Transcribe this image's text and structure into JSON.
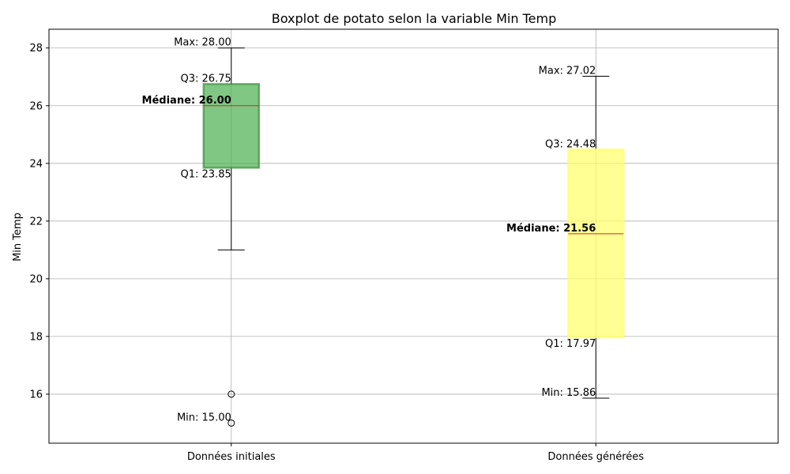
{
  "chart_data": {
    "type": "boxplot",
    "title": "Boxplot de potato selon la variable Min Temp",
    "ylabel": "Min Temp",
    "xlabel": "",
    "ylim": [
      14.3,
      28.65
    ],
    "yticks": [
      16,
      18,
      20,
      22,
      24,
      26,
      28
    ],
    "grid": true,
    "categories": [
      "Données initiales",
      "Données générées"
    ],
    "boxes": [
      {
        "category": "Données initiales",
        "color": "#4caf50",
        "edge_color": "#3a8f3a",
        "whisker_low": 21.0,
        "q1": 23.85,
        "median": 26.0,
        "q3": 26.75,
        "whisker_high": 28.0,
        "min": 15.0,
        "max": 28.0,
        "outliers": [
          16.0,
          15.0
        ],
        "labels": {
          "max": "Max: 28.00",
          "q3": "Q3: 26.75",
          "median": "Médiane: 26.00",
          "q1": "Q1: 23.85",
          "min": "Min: 15.00"
        }
      },
      {
        "category": "Données générées",
        "color": "#ffff66",
        "edge_color": "#ffff66",
        "whisker_low": 15.86,
        "q1": 17.97,
        "median": 21.56,
        "q3": 24.48,
        "whisker_high": 27.02,
        "min": 15.86,
        "max": 27.02,
        "outliers": [],
        "labels": {
          "max": "Max: 27.02",
          "q3": "Q3: 24.48",
          "median": "Médiane: 21.56",
          "q1": "Q1: 17.97",
          "min": "Min: 15.86"
        }
      }
    ],
    "median_color": "#d62728"
  }
}
